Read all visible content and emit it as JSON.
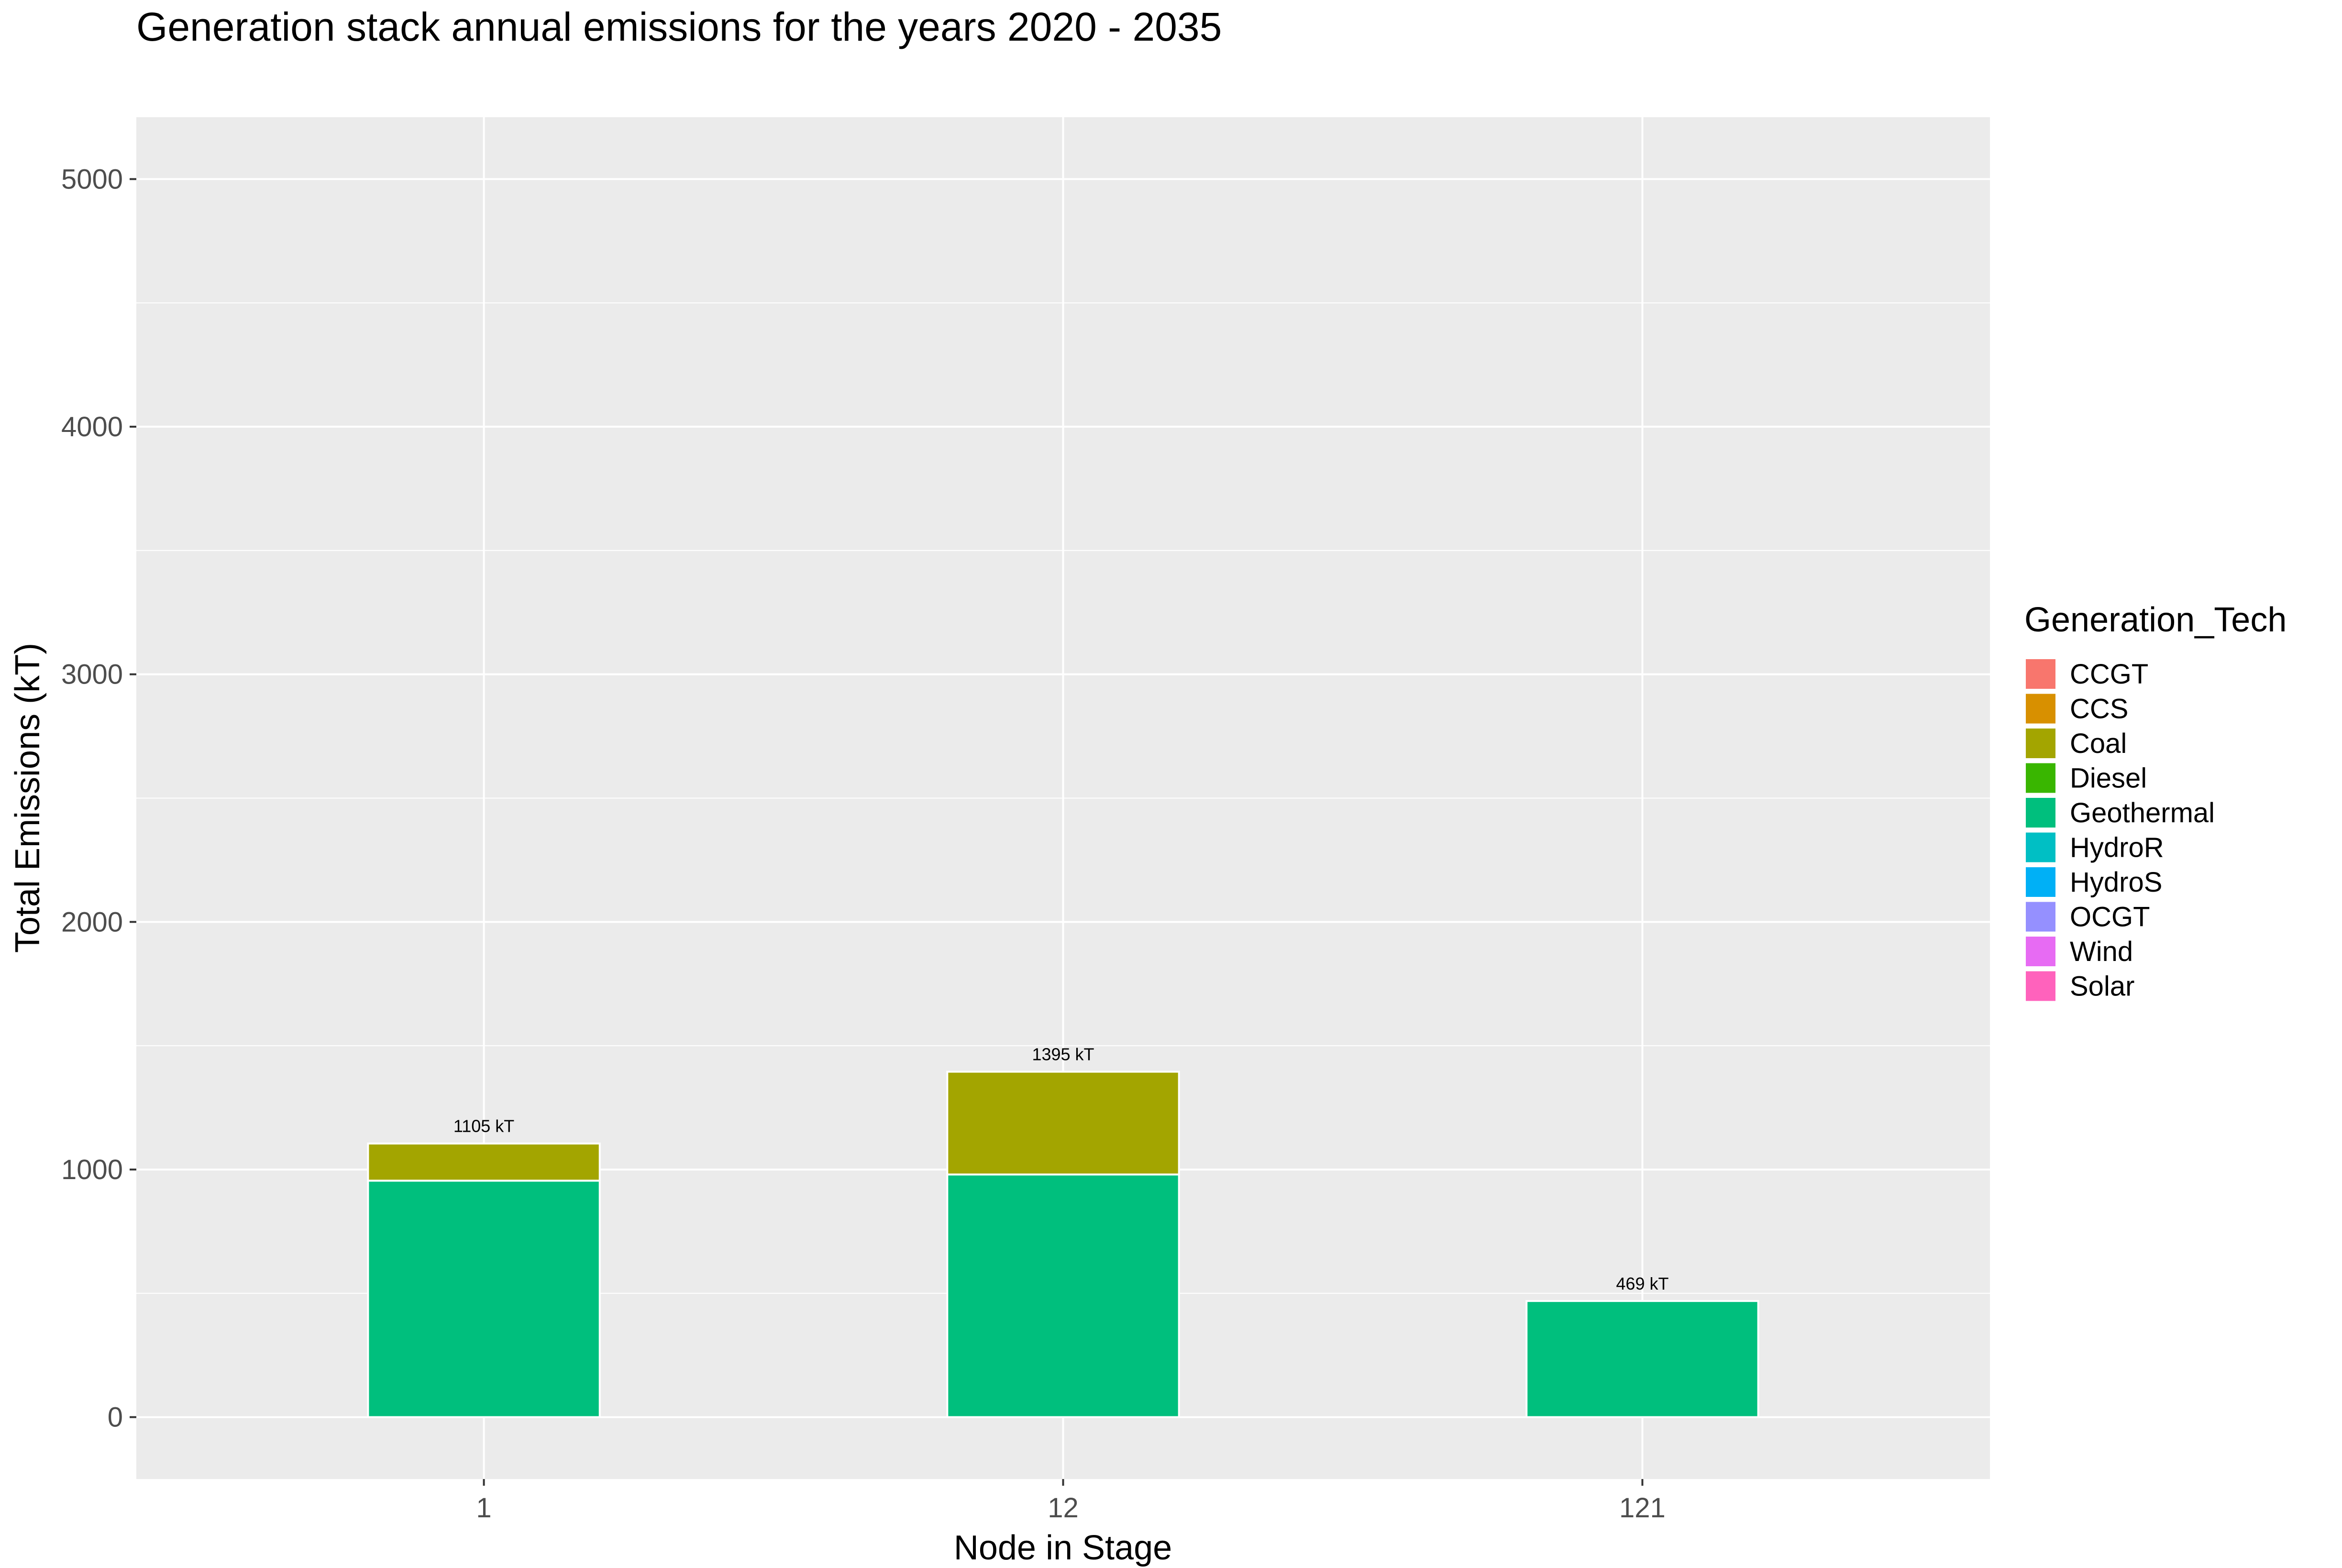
{
  "chart_data": {
    "type": "bar",
    "stacked": true,
    "title": "Generation stack annual emissions for the years 2020 - 2035",
    "xlabel": "Node in Stage",
    "ylabel": "Total Emissions (kT)",
    "categories": [
      "1",
      "12",
      "121"
    ],
    "ylim": [
      -250,
      5250
    ],
    "yticks": [
      0,
      1000,
      2000,
      3000,
      4000,
      5000
    ],
    "grid": true,
    "legend": {
      "title": "Generation_Tech",
      "position": "right",
      "entries": [
        {
          "name": "CCGT",
          "color": "#F8766D"
        },
        {
          "name": "CCS",
          "color": "#D89000"
        },
        {
          "name": "Coal",
          "color": "#A3A500"
        },
        {
          "name": "Diesel",
          "color": "#39B600"
        },
        {
          "name": "Geothermal",
          "color": "#00BF7D"
        },
        {
          "name": "HydroR",
          "color": "#00BFC4"
        },
        {
          "name": "HydroS",
          "color": "#00B0F6"
        },
        {
          "name": "OCGT",
          "color": "#9590FF"
        },
        {
          "name": "Wind",
          "color": "#E76BF3"
        },
        {
          "name": "Solar",
          "color": "#FF62BC"
        }
      ]
    },
    "series": [
      {
        "name": "Geothermal",
        "color": "#00BF7D",
        "values": [
          955,
          980,
          469
        ]
      },
      {
        "name": "Coal",
        "color": "#A3A500",
        "values": [
          150,
          415,
          0
        ]
      }
    ],
    "totals": [
      1105,
      1395,
      469
    ],
    "total_labels": [
      "1105 kT",
      "1395 kT",
      "469 kT"
    ]
  }
}
